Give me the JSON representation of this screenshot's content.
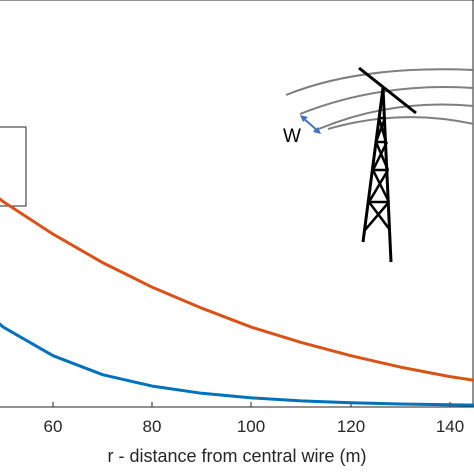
{
  "chart_data": {
    "type": "line",
    "title": "",
    "xlabel": "r - distance from central wire (m)",
    "ylabel": "",
    "xlim": [
      40,
      145
    ],
    "x_ticks": [
      "60",
      "80",
      "100",
      "120",
      "140"
    ],
    "x_tick_values": [
      60,
      80,
      100,
      120,
      140
    ],
    "grid": false,
    "series": [
      {
        "color": "#d95319",
        "x": [
          40,
          50,
          60,
          70,
          80,
          90,
          100,
          110,
          120,
          130,
          140,
          145
        ],
        "y": [
          0.64,
          0.54,
          0.455,
          0.38,
          0.315,
          0.26,
          0.21,
          0.17,
          0.135,
          0.105,
          0.08,
          0.07
        ]
      },
      {
        "color": "#0072bd",
        "x": [
          40,
          50,
          60,
          70,
          80,
          90,
          100,
          110,
          120,
          130,
          140,
          145
        ],
        "y": [
          0.32,
          0.21,
          0.135,
          0.085,
          0.055,
          0.036,
          0.024,
          0.016,
          0.011,
          0.008,
          0.006,
          0.005
        ]
      }
    ],
    "ylim": [
      0,
      1
    ],
    "annotations": {
      "inset_label": "W",
      "inset_description_icon": "transmission-tower-icon"
    }
  }
}
